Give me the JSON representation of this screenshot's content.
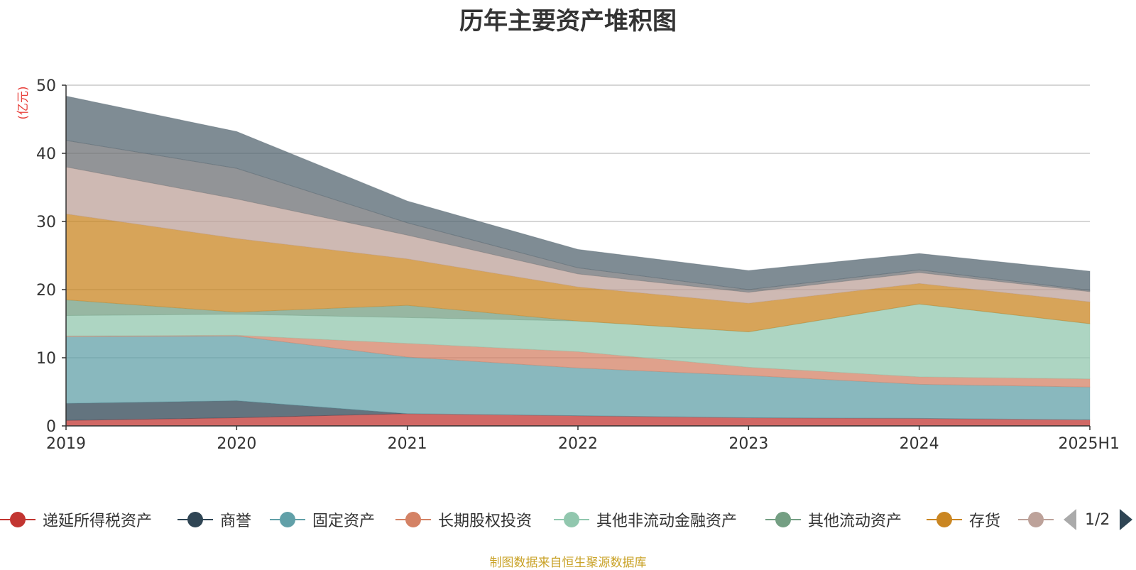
{
  "title": "历年主要资产堆积图",
  "source": "制图数据来自恒生聚源数据库",
  "colors": {
    "axis": "#333333",
    "grid": "#c8c8c8",
    "unit": "#e8413c"
  },
  "legend": [
    {
      "label": "递延所得税资产",
      "color": "#c23531",
      "icon": "circle-icon"
    },
    {
      "label": "商誉",
      "color": "#2f4554",
      "icon": "circle-icon"
    },
    {
      "label": "固定资产",
      "color": "#61a0a8",
      "icon": "circle-icon"
    },
    {
      "label": "长期股权投资",
      "color": "#d48265",
      "icon": "circle-icon"
    },
    {
      "label": "其他非流动金融资产",
      "color": "#91c7ae",
      "icon": "circle-icon"
    },
    {
      "label": "其他流动资产",
      "color": "#749f83",
      "icon": "circle-icon"
    },
    {
      "label": "存货",
      "color": "#ca8622",
      "icon": "circle-icon"
    },
    {
      "label": "",
      "color": "#bda29a",
      "icon": "circle-icon"
    }
  ],
  "pager": {
    "text": "1/2",
    "prev_icon": "triangle-left-icon",
    "next_icon": "triangle-right-icon"
  },
  "chart_data": {
    "type": "area",
    "stacked": true,
    "title": "历年主要资产堆积图",
    "ylabel": "(亿元)",
    "ylim": [
      0,
      50
    ],
    "yticks": [
      0,
      10,
      20,
      30,
      40,
      50
    ],
    "grid": true,
    "legend_position": "bottom",
    "categories": [
      "2019",
      "2020",
      "2021",
      "2022",
      "2023",
      "2024",
      "2025H1"
    ],
    "series": [
      {
        "name": "递延所得税资产",
        "color": "#c23531",
        "values": [
          0.8,
          1.2,
          1.8,
          1.5,
          1.2,
          1.1,
          0.9
        ]
      },
      {
        "name": "商誉",
        "color": "#2f4554",
        "values": [
          2.5,
          2.5,
          0.0,
          0.0,
          0.0,
          0.0,
          0.0
        ]
      },
      {
        "name": "固定资产",
        "color": "#61a0a8",
        "values": [
          9.8,
          9.5,
          8.3,
          7.0,
          6.2,
          5.0,
          4.8
        ]
      },
      {
        "name": "长期股权投资",
        "color": "#d48265",
        "values": [
          0.1,
          0.1,
          2.0,
          2.4,
          1.2,
          1.1,
          1.2
        ]
      },
      {
        "name": "其他非流动金融资产",
        "color": "#91c7ae",
        "values": [
          3.0,
          3.1,
          3.8,
          4.5,
          5.2,
          10.7,
          8.1
        ]
      },
      {
        "name": "其他流动资产",
        "color": "#749f83",
        "values": [
          2.3,
          0.3,
          1.8,
          0.0,
          0.0,
          0.0,
          0.0
        ]
      },
      {
        "name": "存货",
        "color": "#ca8622",
        "values": [
          12.6,
          10.8,
          6.8,
          5.0,
          4.2,
          3.0,
          3.2
        ]
      },
      {
        "name": "",
        "color": "#bda29a",
        "values": [
          6.9,
          5.8,
          3.5,
          1.9,
          1.6,
          1.6,
          1.5
        ]
      },
      {
        "name": "",
        "color": "#6e7074",
        "values": [
          3.9,
          4.5,
          1.8,
          0.9,
          0.4,
          0.4,
          0.2
        ]
      },
      {
        "name": "",
        "color": "#546570",
        "values": [
          6.5,
          5.4,
          3.2,
          2.7,
          2.8,
          2.4,
          2.8
        ]
      }
    ]
  }
}
